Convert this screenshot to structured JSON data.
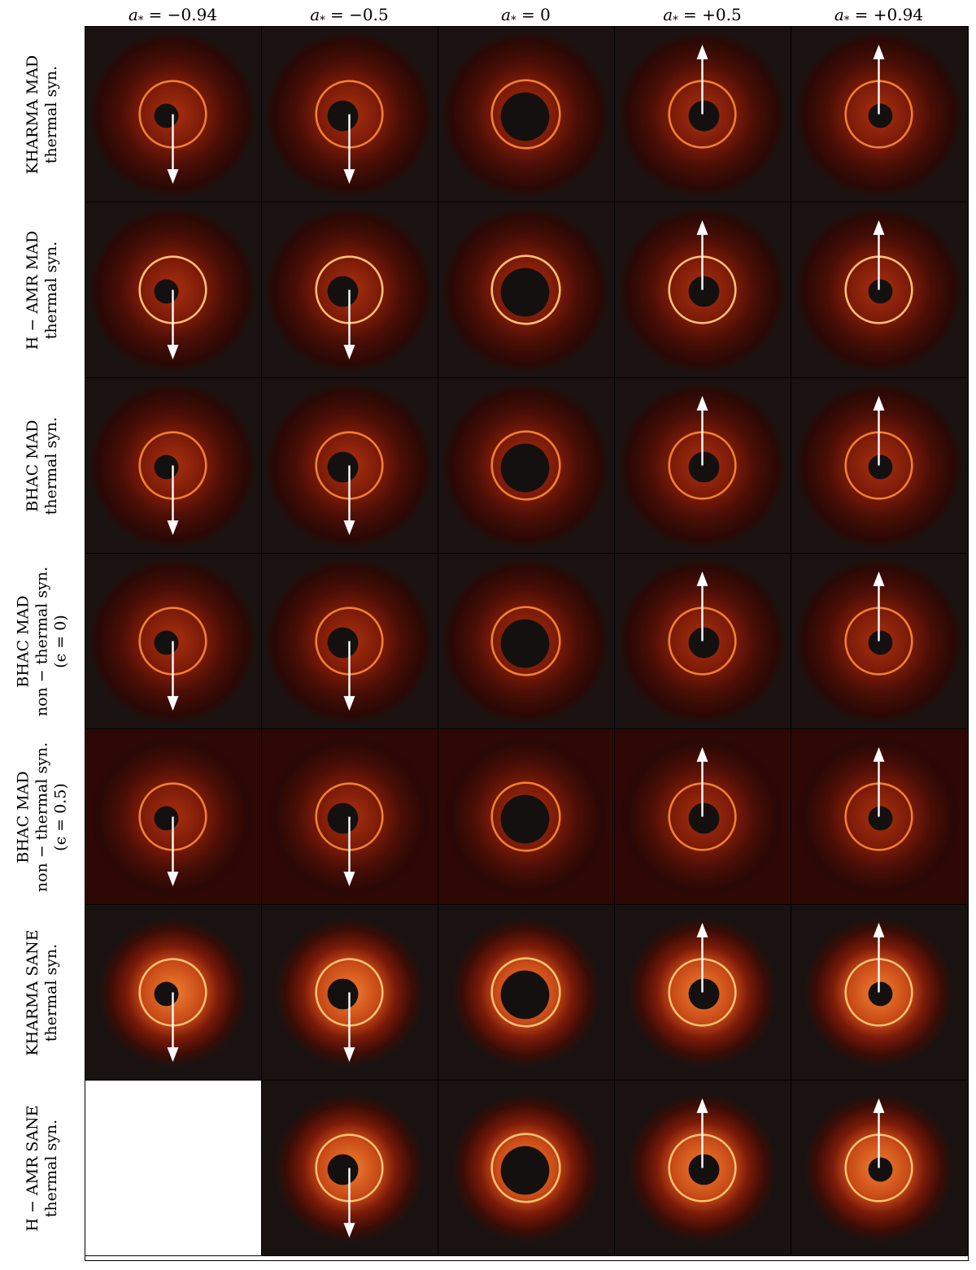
{
  "figure": {
    "columns": [
      {
        "key": "m094",
        "label_prefix": "a",
        "label_sub": "*",
        "label_value": " = −0.94",
        "spin": -0.94
      },
      {
        "key": "m05",
        "label_prefix": "a",
        "label_sub": "*",
        "label_value": " = −0.5",
        "spin": -0.5
      },
      {
        "key": "z0",
        "label_prefix": "a",
        "label_sub": "*",
        "label_value": " = 0",
        "spin": 0
      },
      {
        "key": "p05",
        "label_prefix": "a",
        "label_sub": "*",
        "label_value": " = +0.5",
        "spin": 0.5
      },
      {
        "key": "p094",
        "label_prefix": "a",
        "label_sub": "*",
        "label_value": " = +0.94",
        "spin": 0.94
      }
    ],
    "rows": [
      {
        "line1": "KHARMA MAD",
        "line2": "thermal syn.",
        "line3": ""
      },
      {
        "line1": "H − AMR MAD",
        "line2": "thermal syn.",
        "line3": ""
      },
      {
        "line1": "BHAC MAD",
        "line2": "thermal syn.",
        "line3": ""
      },
      {
        "line1": "BHAC MAD",
        "line2": "non − thermal syn.",
        "line3": "(ϵ = 0)"
      },
      {
        "line1": "BHAC MAD",
        "line2": "non − thermal syn.",
        "line3": "(ϵ = 0.5)"
      },
      {
        "line1": "KHARMA SANE",
        "line2": "thermal syn.",
        "line3": ""
      },
      {
        "line1": "H − AMR SANE",
        "line2": "thermal syn.",
        "line3": ""
      }
    ],
    "empty_cells": [
      [
        6,
        0
      ]
    ],
    "colors": {
      "background": "#1a1210",
      "disk_dim": "#3a0a04",
      "disk_mid": "#7a1a08",
      "ring": "#f08030",
      "ring_bright": "#ffc070",
      "shadow": "#141010",
      "arrow": "#ffffff"
    },
    "icons": {
      "spin_arrow_up": "arrow-up-icon",
      "spin_arrow_down": "arrow-down-icon"
    }
  }
}
